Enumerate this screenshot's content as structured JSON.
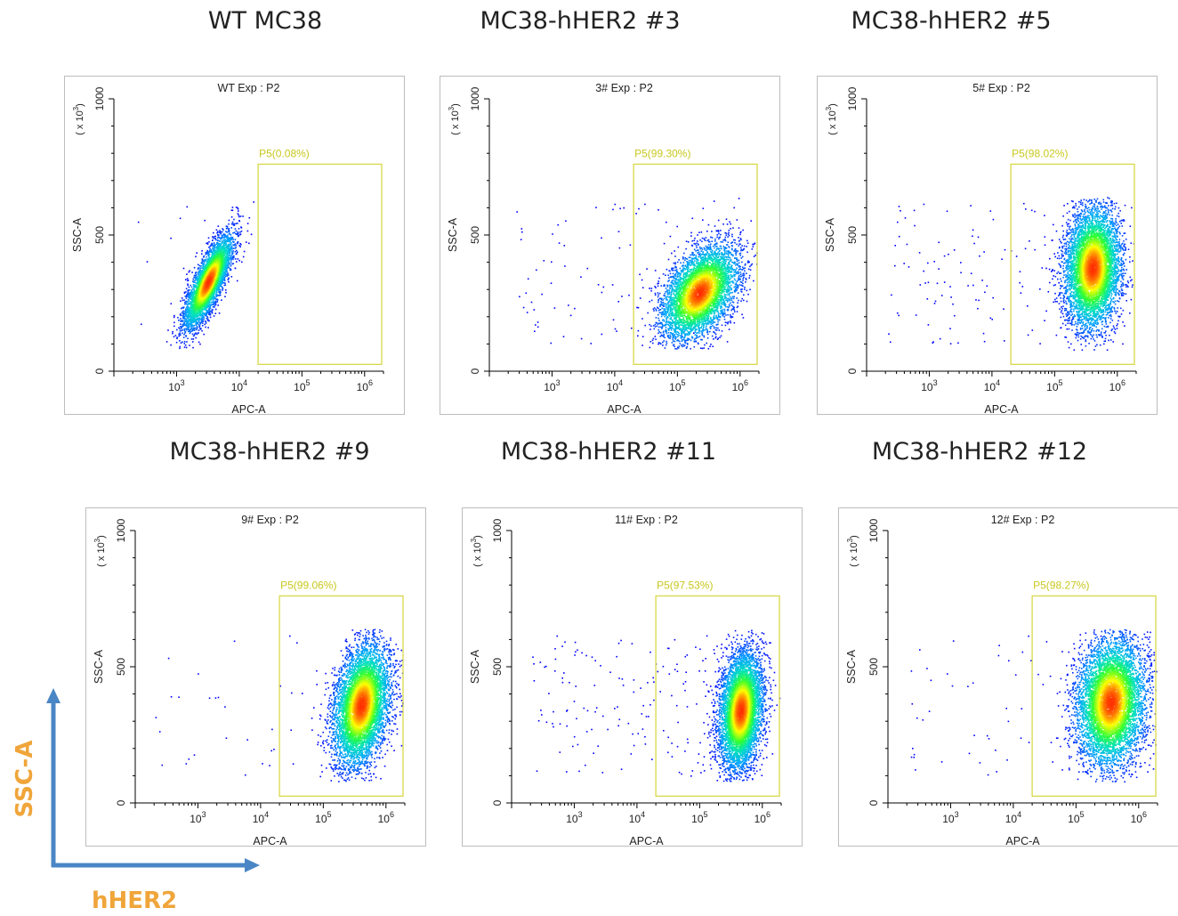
{
  "axis_labels": {
    "y": "SSC-A",
    "x": "hHER2"
  },
  "colors": {
    "gate": "#d8d84a",
    "gate_label": "#c8c820",
    "arrow": "#4a86c5",
    "big_label": "#f0a53a",
    "density_scale": [
      "#0000ff",
      "#00a0ff",
      "#00e0c0",
      "#30ff30",
      "#ffff00",
      "#ff3000"
    ]
  },
  "chart_data": [
    {
      "type": "scatter",
      "heading": "WT MC38",
      "title": "WT Exp : P2",
      "xlabel": "APC-A",
      "ylabel": "SSC-A",
      "y_multiplier": "( x 10",
      "y_exponent": "3",
      "y_multiplier_close": ")",
      "xscale": "log",
      "xlim": [
        100,
        2000000
      ],
      "ylim": [
        0,
        1000
      ],
      "xticks": [
        {
          "value": 1000,
          "base": "10",
          "exp": "3"
        },
        {
          "value": 10000,
          "base": "10",
          "exp": "4"
        },
        {
          "value": 100000,
          "base": "10",
          "exp": "5"
        },
        {
          "value": 1000000,
          "base": "10",
          "exp": "6"
        }
      ],
      "yticks": [
        "0",
        "500",
        "1000"
      ],
      "gate": {
        "name": "P5",
        "percent_label": "P5(0.08%)",
        "x_range": [
          20000,
          2000000
        ],
        "y_range": [
          25,
          760
        ]
      },
      "population": {
        "center_x_log10": 3.5,
        "center_y": 330,
        "x_spread_log10": 0.19,
        "y_spread": 85,
        "corr": 0.8,
        "count": 4500
      },
      "outliers": {
        "count": 10
      }
    },
    {
      "type": "scatter",
      "heading": "MC38-hHER2 #3",
      "title": "3# Exp : P2",
      "xlabel": "APC-A",
      "ylabel": "SSC-A",
      "y_multiplier": "( x 10",
      "y_exponent": "3",
      "y_multiplier_close": ")",
      "xscale": "log",
      "xlim": [
        100,
        2000000
      ],
      "ylim": [
        0,
        1000
      ],
      "xticks": [
        {
          "value": 1000,
          "base": "10",
          "exp": "3"
        },
        {
          "value": 10000,
          "base": "10",
          "exp": "4"
        },
        {
          "value": 100000,
          "base": "10",
          "exp": "5"
        },
        {
          "value": 1000000,
          "base": "10",
          "exp": "6"
        }
      ],
      "yticks": [
        "0",
        "500",
        "1000"
      ],
      "gate": {
        "name": "P5",
        "percent_label": "P5(99.30%)",
        "x_range": [
          20000,
          2000000
        ],
        "y_range": [
          25,
          760
        ]
      },
      "population": {
        "center_x_log10": 5.35,
        "center_y": 290,
        "x_spread_log10": 0.3,
        "y_spread": 85,
        "corr": 0.45,
        "count": 5200
      },
      "outliers": {
        "count": 90
      }
    },
    {
      "type": "scatter",
      "heading": "MC38-hHER2 #5",
      "title": "5# Exp : P2",
      "xlabel": "APC-A",
      "ylabel": "SSC-A",
      "y_multiplier": "( x 10",
      "y_exponent": "3",
      "y_multiplier_close": ")",
      "xscale": "log",
      "xlim": [
        100,
        2000000
      ],
      "ylim": [
        0,
        1000
      ],
      "xticks": [
        {
          "value": 1000,
          "base": "10",
          "exp": "3"
        },
        {
          "value": 10000,
          "base": "10",
          "exp": "4"
        },
        {
          "value": 100000,
          "base": "10",
          "exp": "5"
        },
        {
          "value": 1000000,
          "base": "10",
          "exp": "6"
        }
      ],
      "yticks": [
        "0",
        "500",
        "1000"
      ],
      "gate": {
        "name": "P5",
        "percent_label": "P5(98.02%)",
        "x_range": [
          20000,
          2000000
        ],
        "y_range": [
          25,
          760
        ]
      },
      "population": {
        "center_x_log10": 5.6,
        "center_y": 380,
        "x_spread_log10": 0.22,
        "y_spread": 110,
        "corr": 0.1,
        "count": 6000
      },
      "outliers": {
        "count": 130
      }
    },
    {
      "type": "scatter",
      "heading": "MC38-hHER2 #9",
      "title": "9# Exp : P2",
      "xlabel": "APC-A",
      "ylabel": "SSC-A",
      "y_multiplier": "( x 10",
      "y_exponent": "3",
      "y_multiplier_close": ")",
      "xscale": "log",
      "xlim": [
        100,
        2000000
      ],
      "ylim": [
        0,
        1000
      ],
      "xticks": [
        {
          "value": 1000,
          "base": "10",
          "exp": "3"
        },
        {
          "value": 10000,
          "base": "10",
          "exp": "4"
        },
        {
          "value": 100000,
          "base": "10",
          "exp": "5"
        },
        {
          "value": 1000000,
          "base": "10",
          "exp": "6"
        }
      ],
      "yticks": [
        "0",
        "500",
        "1000"
      ],
      "gate": {
        "name": "P5",
        "percent_label": "P5(99.06%)",
        "x_range": [
          20000,
          2000000
        ],
        "y_range": [
          25,
          760
        ]
      },
      "population": {
        "center_x_log10": 5.6,
        "center_y": 360,
        "x_spread_log10": 0.22,
        "y_spread": 110,
        "corr": 0.3,
        "count": 6000
      },
      "outliers": {
        "count": 40
      }
    },
    {
      "type": "scatter",
      "heading": "MC38-hHER2 #11",
      "title": "11# Exp : P2",
      "xlabel": "APC-A",
      "ylabel": "SSC-A",
      "y_multiplier": "( x 10",
      "y_exponent": "3",
      "y_multiplier_close": ")",
      "xscale": "log",
      "xlim": [
        100,
        2000000
      ],
      "ylim": [
        0,
        1000
      ],
      "xticks": [
        {
          "value": 1000,
          "base": "10",
          "exp": "3"
        },
        {
          "value": 10000,
          "base": "10",
          "exp": "4"
        },
        {
          "value": 100000,
          "base": "10",
          "exp": "5"
        },
        {
          "value": 1000000,
          "base": "10",
          "exp": "6"
        }
      ],
      "yticks": [
        "0",
        "500",
        "1000"
      ],
      "gate": {
        "name": "P5",
        "percent_label": "P5(97.53%)",
        "x_range": [
          20000,
          2000000
        ],
        "y_range": [
          25,
          760
        ]
      },
      "population": {
        "center_x_log10": 5.65,
        "center_y": 340,
        "x_spread_log10": 0.17,
        "y_spread": 105,
        "corr": 0.2,
        "count": 6000
      },
      "outliers": {
        "count": 170
      }
    },
    {
      "type": "scatter",
      "heading": "MC38-hHER2 #12",
      "title": "12# Exp : P2",
      "xlabel": "APC-A",
      "ylabel": "SSC-A",
      "y_multiplier": "( x 10",
      "y_exponent": "3",
      "y_multiplier_close": ")",
      "xscale": "log",
      "xlim": [
        100,
        2000000
      ],
      "ylim": [
        0,
        1000
      ],
      "xticks": [
        {
          "value": 1000,
          "base": "10",
          "exp": "3"
        },
        {
          "value": 10000,
          "base": "10",
          "exp": "4"
        },
        {
          "value": 100000,
          "base": "10",
          "exp": "5"
        },
        {
          "value": 1000000,
          "base": "10",
          "exp": "6"
        }
      ],
      "yticks": [
        "0",
        "500",
        "1000"
      ],
      "gate": {
        "name": "P5",
        "percent_label": "P5(98.27%)",
        "x_range": [
          20000,
          2000000
        ],
        "y_range": [
          25,
          760
        ]
      },
      "population": {
        "center_x_log10": 5.55,
        "center_y": 370,
        "x_spread_log10": 0.27,
        "y_spread": 115,
        "corr": 0.1,
        "count": 6500
      },
      "outliers": {
        "count": 60
      }
    }
  ]
}
